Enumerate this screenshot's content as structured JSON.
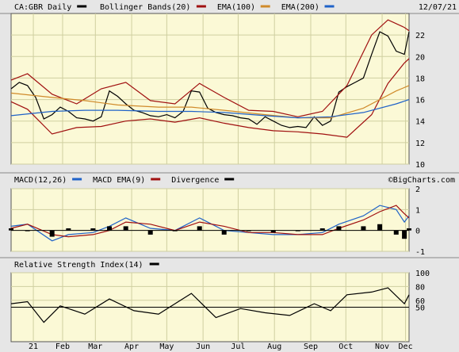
{
  "header": {
    "symbol": "CA:GBR Daily",
    "date": "12/07/21",
    "watermark": "©BigCharts.com"
  },
  "colors": {
    "price": "#000000",
    "bollinger": "#a01010",
    "ema100": "#d08a2a",
    "ema200": "#1f62c8",
    "macd": "#1f62c8",
    "macd_ema": "#a01010",
    "divergence": "#000000",
    "rsi": "#000000",
    "plot_bg": "#fbf9d6",
    "grid": "#cfcfa0",
    "frame_bg": "#e6e6e6"
  },
  "chart_data": [
    {
      "type": "line",
      "panel": "price",
      "legend": [
        {
          "name": "CA:GBR Daily",
          "color": "#000000"
        },
        {
          "name": "Bollinger Bands(20)",
          "color": "#a01010"
        },
        {
          "name": "EMA(100)",
          "color": "#d08a2a"
        },
        {
          "name": "EMA(200)",
          "color": "#1f62c8"
        }
      ],
      "ylim": [
        10,
        24
      ],
      "yticks": [
        10,
        12,
        14,
        16,
        18,
        20,
        22
      ],
      "xlim": [
        "2021-01-01",
        "2021-12-07"
      ],
      "x_tick_labels": [
        "21",
        "Feb",
        "Mar",
        "Apr",
        "May",
        "Jun",
        "Jul",
        "Aug",
        "Sep",
        "Oct",
        "Nov",
        "Dec"
      ],
      "series": [
        {
          "name": "CA:GBR Daily",
          "x": [
            "2021-01-01",
            "2021-01-08",
            "2021-01-15",
            "2021-01-22",
            "2021-01-29",
            "2021-02-05",
            "2021-02-12",
            "2021-02-19",
            "2021-02-26",
            "2021-03-05",
            "2021-03-12",
            "2021-03-19",
            "2021-03-26",
            "2021-04-02",
            "2021-04-09",
            "2021-04-16",
            "2021-04-23",
            "2021-04-30",
            "2021-05-07",
            "2021-05-14",
            "2021-05-21",
            "2021-05-28",
            "2021-06-04",
            "2021-06-11",
            "2021-06-18",
            "2021-06-25",
            "2021-07-02",
            "2021-07-09",
            "2021-07-16",
            "2021-07-23",
            "2021-07-30",
            "2021-08-06",
            "2021-08-13",
            "2021-08-20",
            "2021-08-27",
            "2021-09-03",
            "2021-09-10",
            "2021-09-17",
            "2021-09-24",
            "2021-10-01",
            "2021-10-08",
            "2021-10-15",
            "2021-10-22",
            "2021-10-29",
            "2021-11-05",
            "2021-11-12",
            "2021-11-19",
            "2021-11-26",
            "2021-12-03",
            "2021-12-07"
          ],
          "values": [
            17.0,
            17.6,
            17.3,
            16.2,
            14.2,
            14.6,
            15.3,
            14.9,
            14.3,
            14.2,
            14.0,
            14.4,
            16.8,
            16.3,
            15.6,
            15.0,
            14.8,
            14.5,
            14.4,
            14.6,
            14.3,
            14.9,
            16.8,
            16.7,
            15.2,
            14.8,
            14.6,
            14.5,
            14.3,
            14.2,
            13.7,
            14.4,
            14.0,
            13.6,
            13.4,
            13.5,
            13.4,
            14.4,
            13.6,
            14.0,
            16.7,
            17.2,
            17.6,
            18.0,
            20.2,
            22.3,
            21.9,
            20.5,
            20.2,
            22.3
          ]
        },
        {
          "name": "Bollinger Upper",
          "x": [
            "2021-01-01",
            "2021-01-15",
            "2021-02-05",
            "2021-02-26",
            "2021-03-19",
            "2021-04-09",
            "2021-04-30",
            "2021-05-21",
            "2021-06-11",
            "2021-07-02",
            "2021-07-23",
            "2021-08-13",
            "2021-09-03",
            "2021-09-24",
            "2021-10-15",
            "2021-11-05",
            "2021-11-19",
            "2021-12-03",
            "2021-12-07"
          ],
          "values": [
            17.8,
            18.4,
            16.5,
            15.6,
            17.0,
            17.6,
            15.9,
            15.6,
            17.5,
            16.2,
            15.0,
            14.9,
            14.4,
            14.9,
            17.3,
            22.0,
            23.4,
            22.7,
            22.4
          ]
        },
        {
          "name": "Bollinger Lower",
          "x": [
            "2021-01-01",
            "2021-01-15",
            "2021-02-05",
            "2021-02-26",
            "2021-03-19",
            "2021-04-09",
            "2021-04-30",
            "2021-05-21",
            "2021-06-11",
            "2021-07-02",
            "2021-07-23",
            "2021-08-13",
            "2021-09-03",
            "2021-09-24",
            "2021-10-15",
            "2021-11-05",
            "2021-11-19",
            "2021-12-03",
            "2021-12-07"
          ],
          "values": [
            15.8,
            15.1,
            12.8,
            13.4,
            13.5,
            14.0,
            14.2,
            13.9,
            14.3,
            13.8,
            13.4,
            13.1,
            13.0,
            12.8,
            12.5,
            14.6,
            17.5,
            19.4,
            19.8
          ]
        },
        {
          "name": "EMA(100)",
          "x": [
            "2021-01-01",
            "2021-02-05",
            "2021-03-05",
            "2021-04-02",
            "2021-05-07",
            "2021-06-04",
            "2021-07-02",
            "2021-08-06",
            "2021-09-03",
            "2021-10-01",
            "2021-10-29",
            "2021-11-26",
            "2021-12-07"
          ],
          "values": [
            16.6,
            16.2,
            15.9,
            15.5,
            15.3,
            15.3,
            15.0,
            14.6,
            14.3,
            14.3,
            15.2,
            16.8,
            17.3
          ]
        },
        {
          "name": "EMA(200)",
          "x": [
            "2021-01-01",
            "2021-02-05",
            "2021-03-05",
            "2021-04-02",
            "2021-05-07",
            "2021-06-04",
            "2021-07-02",
            "2021-08-06",
            "2021-09-03",
            "2021-10-01",
            "2021-10-29",
            "2021-11-26",
            "2021-12-07"
          ],
          "values": [
            14.5,
            14.9,
            15.0,
            15.0,
            14.9,
            14.9,
            14.8,
            14.5,
            14.3,
            14.4,
            14.8,
            15.6,
            16.0
          ]
        }
      ]
    },
    {
      "type": "line",
      "panel": "macd",
      "legend": [
        {
          "name": "MACD(12,26)",
          "color": "#1f62c8"
        },
        {
          "name": "MACD EMA(9)",
          "color": "#a01010"
        },
        {
          "name": "Divergence",
          "color": "#000000"
        }
      ],
      "ylim": [
        -1,
        2
      ],
      "yticks": [
        -1,
        0,
        1,
        2
      ],
      "series": [
        {
          "name": "MACD(12,26)",
          "x": [
            "2021-01-01",
            "2021-01-15",
            "2021-02-05",
            "2021-02-19",
            "2021-03-12",
            "2021-03-26",
            "2021-04-09",
            "2021-04-30",
            "2021-05-21",
            "2021-06-11",
            "2021-07-02",
            "2021-07-23",
            "2021-08-13",
            "2021-09-03",
            "2021-09-24",
            "2021-10-08",
            "2021-10-29",
            "2021-11-12",
            "2021-11-26",
            "2021-12-03",
            "2021-12-07"
          ],
          "values": [
            0.2,
            0.3,
            -0.5,
            -0.2,
            -0.1,
            0.2,
            0.6,
            0.1,
            0.0,
            0.6,
            0.0,
            -0.1,
            -0.2,
            -0.2,
            -0.1,
            0.3,
            0.7,
            1.2,
            1.0,
            0.4,
            0.7
          ]
        },
        {
          "name": "MACD EMA(9)",
          "x": [
            "2021-01-01",
            "2021-01-15",
            "2021-02-05",
            "2021-02-19",
            "2021-03-12",
            "2021-03-26",
            "2021-04-09",
            "2021-04-30",
            "2021-05-21",
            "2021-06-11",
            "2021-07-02",
            "2021-07-23",
            "2021-08-13",
            "2021-09-03",
            "2021-09-24",
            "2021-10-08",
            "2021-10-29",
            "2021-11-12",
            "2021-11-26",
            "2021-12-03",
            "2021-12-07"
          ],
          "values": [
            0.1,
            0.3,
            -0.2,
            -0.3,
            -0.2,
            0.0,
            0.4,
            0.3,
            0.0,
            0.4,
            0.2,
            -0.1,
            -0.1,
            -0.2,
            -0.2,
            0.1,
            0.5,
            0.9,
            1.2,
            0.8,
            0.6
          ]
        }
      ]
    },
    {
      "type": "line",
      "panel": "rsi",
      "legend": [
        {
          "name": "Relative Strength Index(14)",
          "color": "#000000"
        }
      ],
      "ylim": [
        0,
        100
      ],
      "yticks": [
        50,
        60,
        80,
        100
      ],
      "series": [
        {
          "name": "Relative Strength Index(14)",
          "x": [
            "2021-01-01",
            "2021-01-15",
            "2021-01-29",
            "2021-02-12",
            "2021-03-05",
            "2021-03-26",
            "2021-04-16",
            "2021-05-07",
            "2021-06-04",
            "2021-06-25",
            "2021-07-16",
            "2021-08-06",
            "2021-08-27",
            "2021-09-17",
            "2021-10-01",
            "2021-10-15",
            "2021-11-05",
            "2021-11-19",
            "2021-12-03",
            "2021-12-07"
          ],
          "values": [
            55,
            58,
            28,
            52,
            40,
            62,
            45,
            40,
            70,
            35,
            48,
            42,
            38,
            55,
            45,
            68,
            72,
            78,
            55,
            68
          ]
        }
      ]
    }
  ]
}
